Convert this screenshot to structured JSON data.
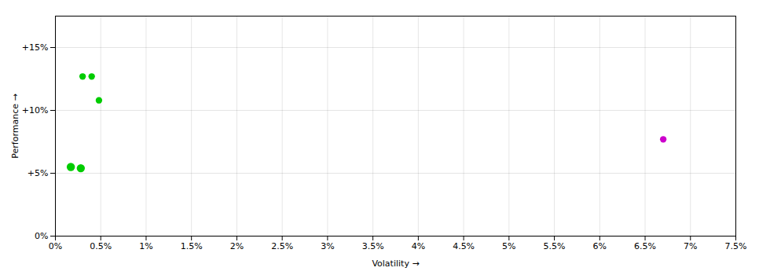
{
  "chart_data": {
    "type": "scatter",
    "xlabel": "Volatility",
    "ylabel": "Performance",
    "x": [
      0.003,
      0.004,
      0.0048,
      0.0017,
      0.0028,
      0.067
    ],
    "values": [
      0.127,
      0.127,
      0.108,
      0.055,
      0.054,
      0.077
    ],
    "sizes": [
      35,
      35,
      35,
      55,
      55,
      35
    ],
    "colors": [
      "#00cc00",
      "#00cc00",
      "#00cc00",
      "#00cc00",
      "#00cc00",
      "#cc00cc"
    ],
    "xlim": [
      0,
      0.075
    ],
    "ylim": [
      0,
      0.175
    ],
    "xticks": [
      {
        "value": 0,
        "label": "0%"
      },
      {
        "value": 0.005,
        "label": "0.5%"
      },
      {
        "value": 0.01,
        "label": "1%"
      },
      {
        "value": 0.015,
        "label": "1.5%"
      },
      {
        "value": 0.02,
        "label": "2%"
      },
      {
        "value": 0.025,
        "label": "2.5%"
      },
      {
        "value": 0.03,
        "label": "3%"
      },
      {
        "value": 0.035,
        "label": "3.5%"
      },
      {
        "value": 0.04,
        "label": "4%"
      },
      {
        "value": 0.045,
        "label": "4.5%"
      },
      {
        "value": 0.05,
        "label": "5%"
      },
      {
        "value": 0.055,
        "label": "5.5%"
      },
      {
        "value": 0.06,
        "label": "6%"
      },
      {
        "value": 0.065,
        "label": "6.5%"
      },
      {
        "value": 0.07,
        "label": "7%"
      },
      {
        "value": 0.075,
        "label": "7.5%"
      }
    ],
    "yticks": [
      {
        "value": 0,
        "label": "0%"
      },
      {
        "value": 0.05,
        "label": "+5%"
      },
      {
        "value": 0.1,
        "label": "+10%"
      },
      {
        "value": 0.15,
        "label": "+15%"
      }
    ],
    "grid": true
  }
}
